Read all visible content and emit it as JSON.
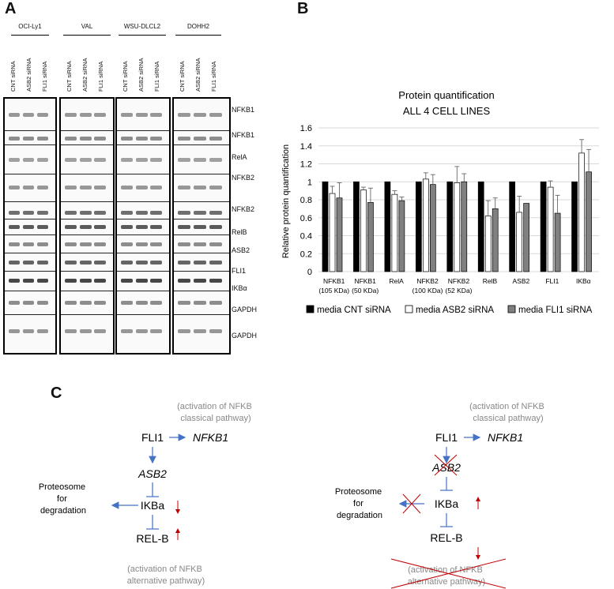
{
  "panels": {
    "a": "A",
    "b": "B",
    "c": "C"
  },
  "blots": {
    "cell_lines": [
      "OCI-Ly1",
      "VAL",
      "WSU-DLCL2",
      "DOHH2"
    ],
    "conditions": [
      "CNT siRNA",
      "ASB2 siRNA",
      "FLI1 siRNA"
    ],
    "labels": [
      "NFKB1",
      "NFKB1",
      "RelA",
      "NFKB2",
      "NFKB2",
      "RelB",
      "ASB2",
      "FLI1",
      "IKBα",
      "GAPDH",
      "GAPDH"
    ]
  },
  "chart_data": {
    "type": "bar",
    "title": "Protein quantification",
    "subtitle": "ALL 4 CELL LINES",
    "ylabel": "Relative protein quantification",
    "xlabel": "",
    "ylim": [
      0,
      1.6
    ],
    "yticks": [
      "0",
      "0.2",
      "0.4",
      "0.6",
      "0.8",
      "1",
      "1.2",
      "1.4",
      "1.6"
    ],
    "categories": [
      [
        "NFKB1",
        "(105 KDa)"
      ],
      [
        "NFKB1",
        "(50 KDa)"
      ],
      [
        "RelA"
      ],
      [
        "NFKB2",
        "(100 KDa)"
      ],
      [
        "NFKB2",
        "(52 KDa)"
      ],
      [
        "RelB"
      ],
      [
        "ASB2"
      ],
      [
        "FLI1"
      ],
      [
        "IKBα"
      ]
    ],
    "series": [
      {
        "name": "media CNT siRNA",
        "color": "#000000",
        "values": [
          1,
          1,
          1,
          1,
          1,
          1,
          1,
          1,
          1
        ],
        "errors": [
          0,
          0,
          0,
          0,
          0,
          0,
          0,
          0,
          0
        ]
      },
      {
        "name": "media ASB2 siRNA",
        "color": "#ffffff",
        "values": [
          0.87,
          0.91,
          0.86,
          1.03,
          0.99,
          0.62,
          0.66,
          0.94,
          1.32
        ],
        "errors": [
          0.08,
          0.03,
          0.04,
          0.07,
          0.18,
          0.17,
          0.18,
          0.07,
          0.15
        ]
      },
      {
        "name": "media FLI1 siRNA",
        "color": "#808080",
        "values": [
          0.82,
          0.77,
          0.79,
          0.97,
          1.0,
          0.7,
          0.76,
          0.65,
          1.11
        ],
        "errors": [
          0.17,
          0.16,
          0.04,
          0.11,
          0.09,
          0.12,
          0.0,
          0.2,
          0.25
        ]
      }
    ],
    "grid": true,
    "legend": "bottom"
  },
  "pathway": {
    "classical": "(activation of NFKB\nclassical pathway)",
    "alternative": "(activation of NFKB\nalternative pathway)",
    "fli1": "FLI1",
    "nfkb1": "NFKB1",
    "asb2": "ASB2",
    "ikba": "IKBa",
    "relb": "REL-B",
    "proteosome": "Proteosome\nfor\ndegradation"
  }
}
